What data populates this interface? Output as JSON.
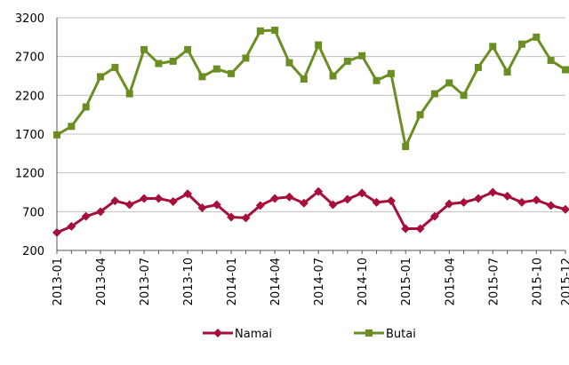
{
  "chart_data": {
    "type": "line",
    "categories": [
      "2013-01",
      null,
      null,
      "2013-04",
      null,
      null,
      "2013-07",
      null,
      null,
      "2013-10",
      null,
      null,
      "2014-01",
      null,
      null,
      "2014-04",
      null,
      null,
      "2014-07",
      null,
      null,
      "2014-10",
      null,
      null,
      "2015-01",
      null,
      null,
      "2015-04",
      null,
      null,
      "2015-07",
      null,
      null,
      "2015-10",
      null,
      "2015-12"
    ],
    "series": [
      {
        "name": "Namai",
        "color": "#a50f3a",
        "marker": "diamond",
        "values": [
          430,
          510,
          640,
          700,
          840,
          790,
          870,
          870,
          830,
          930,
          750,
          790,
          630,
          620,
          780,
          870,
          890,
          810,
          960,
          790,
          860,
          940,
          820,
          840,
          480,
          480,
          640,
          800,
          820,
          870,
          950,
          900,
          820,
          850,
          780,
          730
        ]
      },
      {
        "name": "Butai",
        "color": "#6b8e23",
        "marker": "square",
        "values": [
          1690,
          1800,
          2050,
          2440,
          2560,
          2220,
          2790,
          2610,
          2640,
          2790,
          2440,
          2540,
          2480,
          2680,
          3030,
          3040,
          2620,
          2410,
          2850,
          2450,
          2640,
          2710,
          2390,
          2480,
          1540,
          1950,
          2220,
          2360,
          2200,
          2560,
          2830,
          2500,
          2860,
          2950,
          2650,
          2530
        ]
      }
    ],
    "ylim": [
      200,
      3200
    ],
    "yticks": [
      200,
      700,
      1200,
      1700,
      2200,
      2700,
      3200
    ],
    "grid": true,
    "legend": "bottom"
  }
}
